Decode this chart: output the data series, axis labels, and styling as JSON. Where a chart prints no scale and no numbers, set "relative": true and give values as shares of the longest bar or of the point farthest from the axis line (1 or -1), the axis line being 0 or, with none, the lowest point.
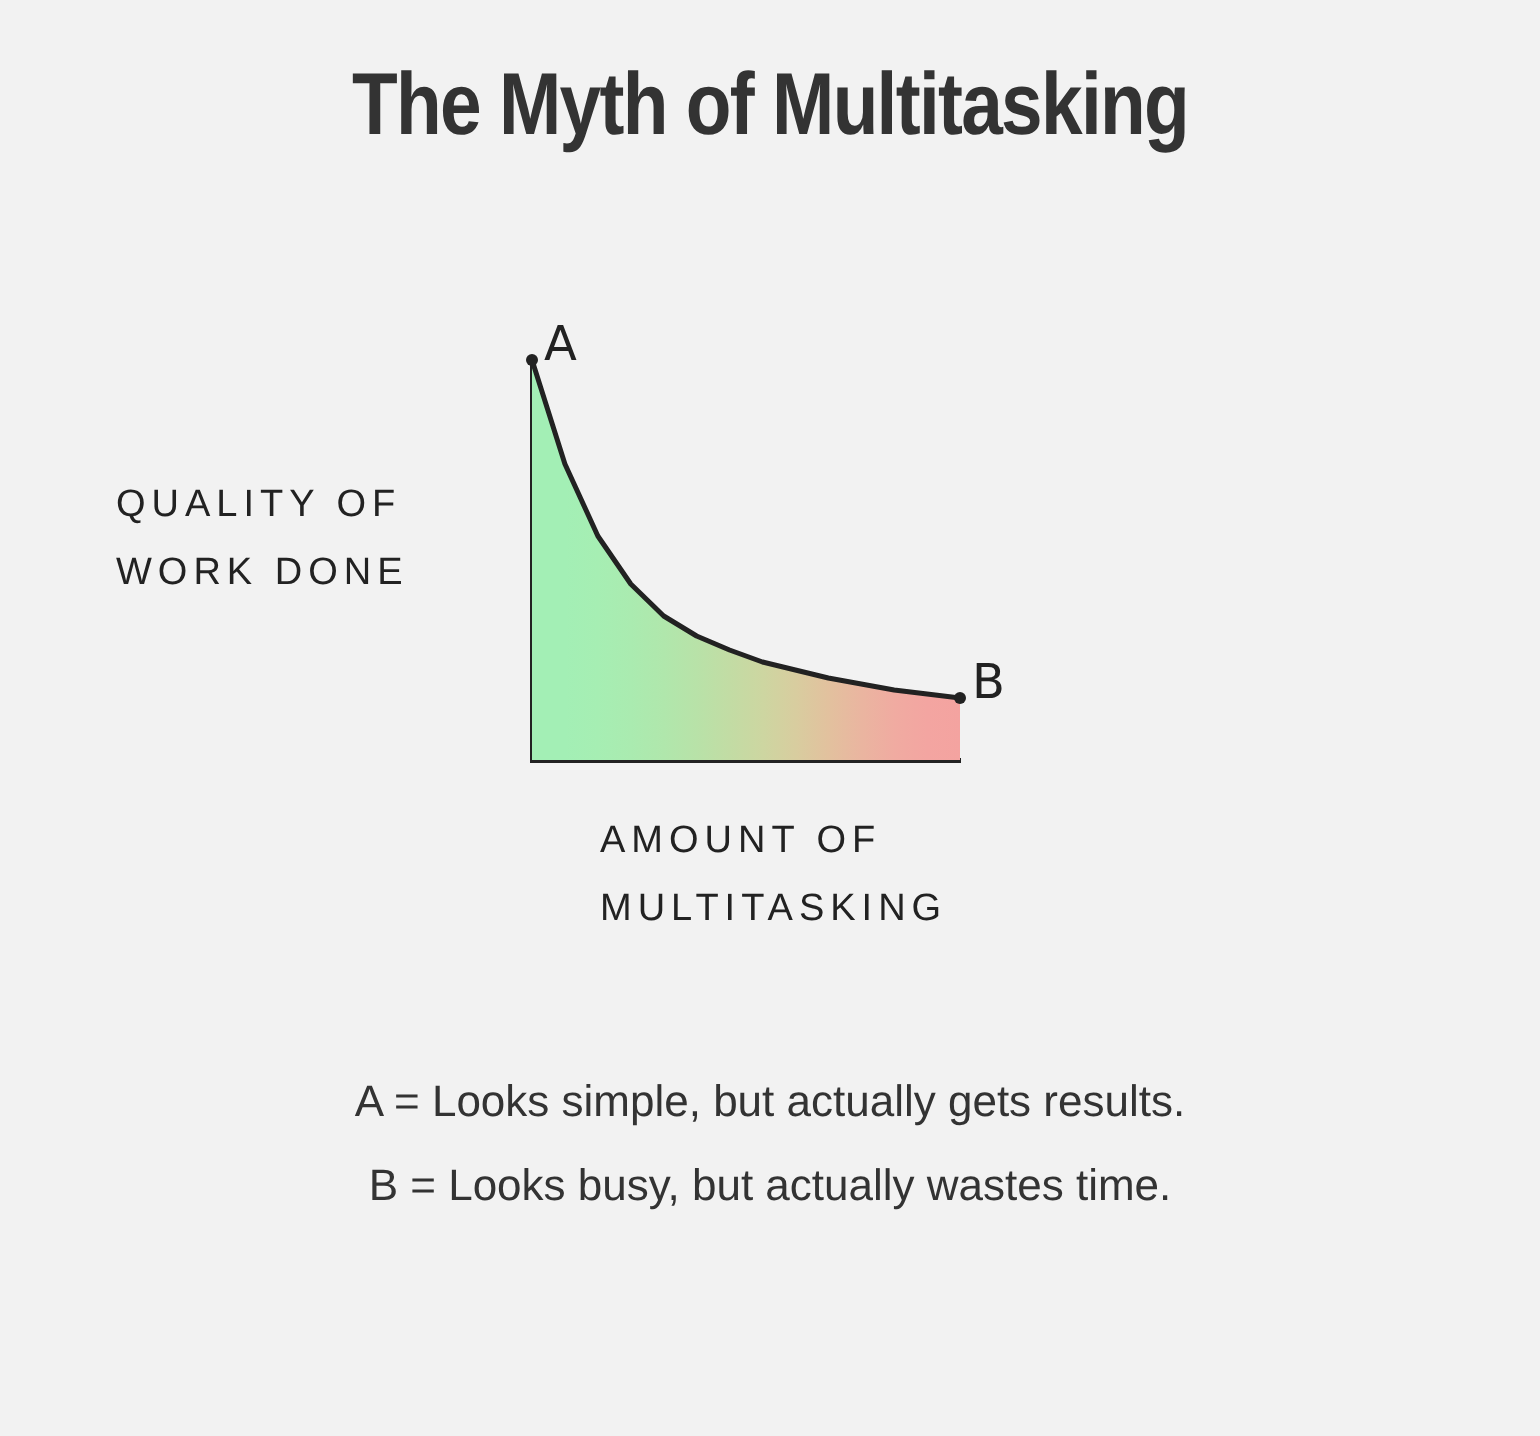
{
  "chart_data": {
    "type": "area",
    "title": "The Myth of Multitasking",
    "xlabel": "AMOUNT OF MULTITASKING",
    "ylabel": "QUALITY OF WORK DONE",
    "relative": true,
    "categories": [
      null,
      null,
      null,
      null,
      null,
      null,
      null,
      null,
      null,
      null,
      null,
      null,
      null,
      null
    ],
    "series": [
      {
        "color": "#222222",
        "colors": [
          "#a3efb5",
          "#a3efb5",
          "#a6eeb3",
          "#aaebb0",
          "#b0e7ac",
          "#b8e2a8",
          "#c2dca4",
          "#cdd6a1",
          "#d8cd9f",
          "#e2c19e",
          "#eab5a0",
          "#f0aba1",
          "#f3a5a1",
          "#f4a3a0"
        ],
        "values": [
          1,
          0.74,
          0.56,
          0.44,
          0.36,
          0.31,
          0.275,
          0.245,
          0.225,
          0.205,
          0.19,
          0.175,
          0.165,
          0.155
        ]
      }
    ],
    "annotations": [
      "A",
      "B",
      "A = Looks simple, but actually gets results.",
      "B = Looks busy, but actually wastes time."
    ]
  }
}
